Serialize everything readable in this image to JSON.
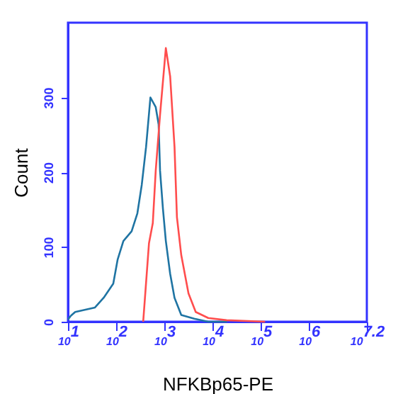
{
  "chart_data": {
    "type": "line",
    "xlabel": "NFKBp65-PE",
    "ylabel": "Count",
    "log": "x",
    "xlim": [
      10,
      15848932
    ],
    "ylim": [
      0,
      400
    ],
    "xticks": [
      {
        "value": 10,
        "label": "10$^{1}$"
      },
      {
        "value": 100,
        "label": "10$^{2}$"
      },
      {
        "value": 1000,
        "label": "10$^{3}$"
      },
      {
        "value": 10000,
        "label": "10$^{4}$"
      },
      {
        "value": 100000,
        "label": "10$^{5}$"
      },
      {
        "value": 1000000,
        "label": "10$^{6}$"
      },
      {
        "value": 15848932,
        "label": "10$^{7.2}$"
      }
    ],
    "yticks": [
      0,
      100,
      200,
      300
    ],
    "series": [
      {
        "color": "#1f74a3",
        "x": [
          10,
          11.5,
          14.1,
          36.3,
          55,
          87,
          107,
          141,
          209,
          275,
          339,
          417,
          513,
          661,
          759,
          813,
          933,
          1072,
          1318,
          1622,
          2239,
          4169,
          8128,
          19953
        ],
        "values": [
          3,
          8,
          13,
          19,
          32,
          51,
          83,
          108,
          121,
          145,
          183,
          234,
          300,
          287,
          264,
          202,
          151,
          108,
          64,
          32,
          9,
          4,
          0,
          0
        ]
      },
      {
        "color": "#ff4d4d",
        "x": [
          363,
          389,
          479,
          575,
          661,
          813,
          1072,
          1318,
          1622,
          1820,
          2239,
          3162,
          4467,
          8128,
          19498,
          123027
        ],
        "values": [
          0,
          26,
          105,
          132,
          202,
          277,
          366,
          328,
          234,
          140,
          89,
          38,
          13,
          5,
          2,
          0
        ]
      }
    ]
  }
}
